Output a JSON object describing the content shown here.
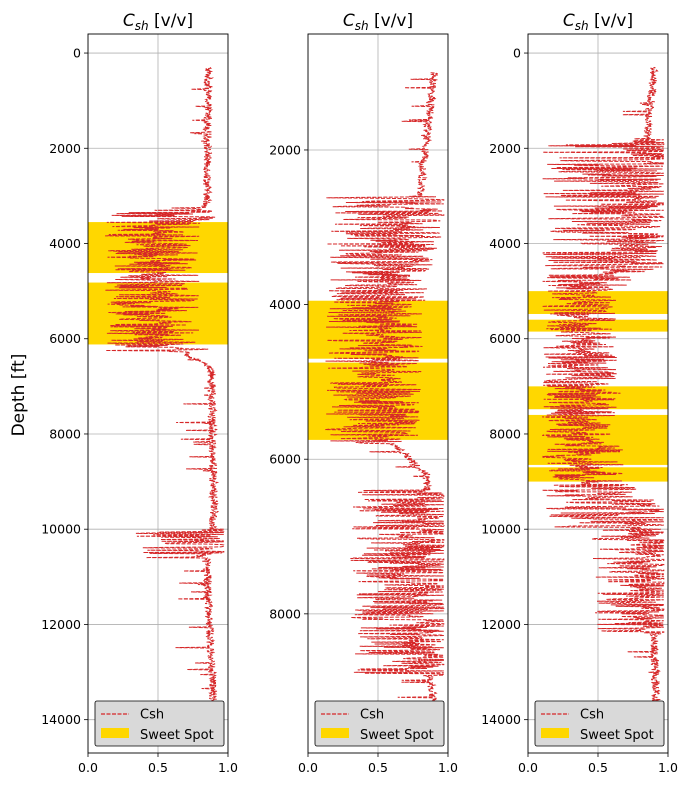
{
  "chart_data": [
    {
      "type": "line",
      "title": "C_sh [v/v]",
      "title_base": "C",
      "title_sub": "sh",
      "title_unit": " [v/v]",
      "ylabel": "Depth [ft]",
      "xlim": [
        0,
        1
      ],
      "ylim": [
        14700,
        -400
      ],
      "y_inverted": true,
      "xticks": [
        "0.0",
        "0.5",
        "1.0"
      ],
      "yticks": [
        "0",
        "2000",
        "4000",
        "6000",
        "8000",
        "10000",
        "12000",
        "14000"
      ],
      "grid": true,
      "legend": {
        "placement": "lower-right",
        "entries": [
          "Csh",
          "Sweet Spot"
        ]
      },
      "colors": {
        "csh": "#d62728",
        "sweet_spot": "#ffd700"
      },
      "sweet_spots": [
        [
          3550,
          4620
        ],
        [
          4820,
          6120
        ]
      ],
      "series": [
        {
          "name": "Csh",
          "depth_range": [
            300,
            13950
          ],
          "base_profile": [
            [
              300,
              0.86
            ],
            [
              3200,
              0.85
            ],
            [
              3600,
              0.55
            ],
            [
              6100,
              0.55
            ],
            [
              6600,
              0.88
            ],
            [
              9600,
              0.9
            ],
            [
              10800,
              0.85
            ],
            [
              13950,
              0.9
            ]
          ],
          "dip_zones": [
            [
              3300,
              6300,
              0.12
            ],
            [
              10000,
              10600,
              0.3
            ]
          ]
        }
      ]
    },
    {
      "type": "line",
      "title": "C_sh [v/v]",
      "title_base": "C",
      "title_sub": "sh",
      "title_unit": " [v/v]",
      "ylabel": "",
      "xlim": [
        0,
        1
      ],
      "ylim": [
        9800,
        500
      ],
      "y_inverted": true,
      "xticks": [
        "0.0",
        "0.5",
        "1.0"
      ],
      "yticks": [
        "2000",
        "4000",
        "6000",
        "8000"
      ],
      "grid": true,
      "legend": {
        "placement": "lower-right",
        "entries": [
          "Csh",
          "Sweet Spot"
        ]
      },
      "colors": {
        "csh": "#d62728",
        "sweet_spot": "#ffd700"
      },
      "sweet_spots": [
        [
          3950,
          4700
        ],
        [
          4750,
          5750
        ]
      ],
      "series": [
        {
          "name": "Csh",
          "depth_range": [
            1000,
            9550
          ],
          "base_profile": [
            [
              1000,
              0.9
            ],
            [
              2600,
              0.8
            ],
            [
              3900,
              0.6
            ],
            [
              5700,
              0.55
            ],
            [
              6200,
              0.85
            ],
            [
              8000,
              0.82
            ],
            [
              9550,
              0.92
            ]
          ],
          "dip_zones": [
            [
              2600,
              5800,
              0.12
            ],
            [
              6400,
              8800,
              0.3
            ]
          ]
        }
      ]
    },
    {
      "type": "line",
      "title": "C_sh [v/v]",
      "title_base": "C",
      "title_sub": "sh",
      "title_unit": " [v/v]",
      "ylabel": "",
      "xlim": [
        0,
        1
      ],
      "ylim": [
        14700,
        -400
      ],
      "y_inverted": true,
      "xticks": [
        "0.0",
        "0.5",
        "1.0"
      ],
      "yticks": [
        "0",
        "2000",
        "4000",
        "6000",
        "8000",
        "10000",
        "12000",
        "14000"
      ],
      "grid": true,
      "legend": {
        "placement": "lower-right",
        "entries": [
          "Csh",
          "Sweet Spot"
        ]
      },
      "colors": {
        "csh": "#d62728",
        "sweet_spot": "#ffd700"
      },
      "sweet_spots": [
        [
          5000,
          5480
        ],
        [
          5600,
          5850
        ],
        [
          7000,
          7480
        ],
        [
          7600,
          8650
        ],
        [
          8700,
          9000
        ]
      ],
      "series": [
        {
          "name": "Csh",
          "depth_range": [
            300,
            13950
          ],
          "base_profile": [
            [
              300,
              0.9
            ],
            [
              1800,
              0.85
            ],
            [
              4500,
              0.72
            ],
            [
              5000,
              0.4
            ],
            [
              9000,
              0.45
            ],
            [
              9500,
              0.75
            ],
            [
              10600,
              0.88
            ],
            [
              13950,
              0.92
            ]
          ],
          "dip_zones": [
            [
              1800,
              10000,
              0.1
            ],
            [
              10000,
              12200,
              0.45
            ]
          ]
        }
      ]
    }
  ]
}
